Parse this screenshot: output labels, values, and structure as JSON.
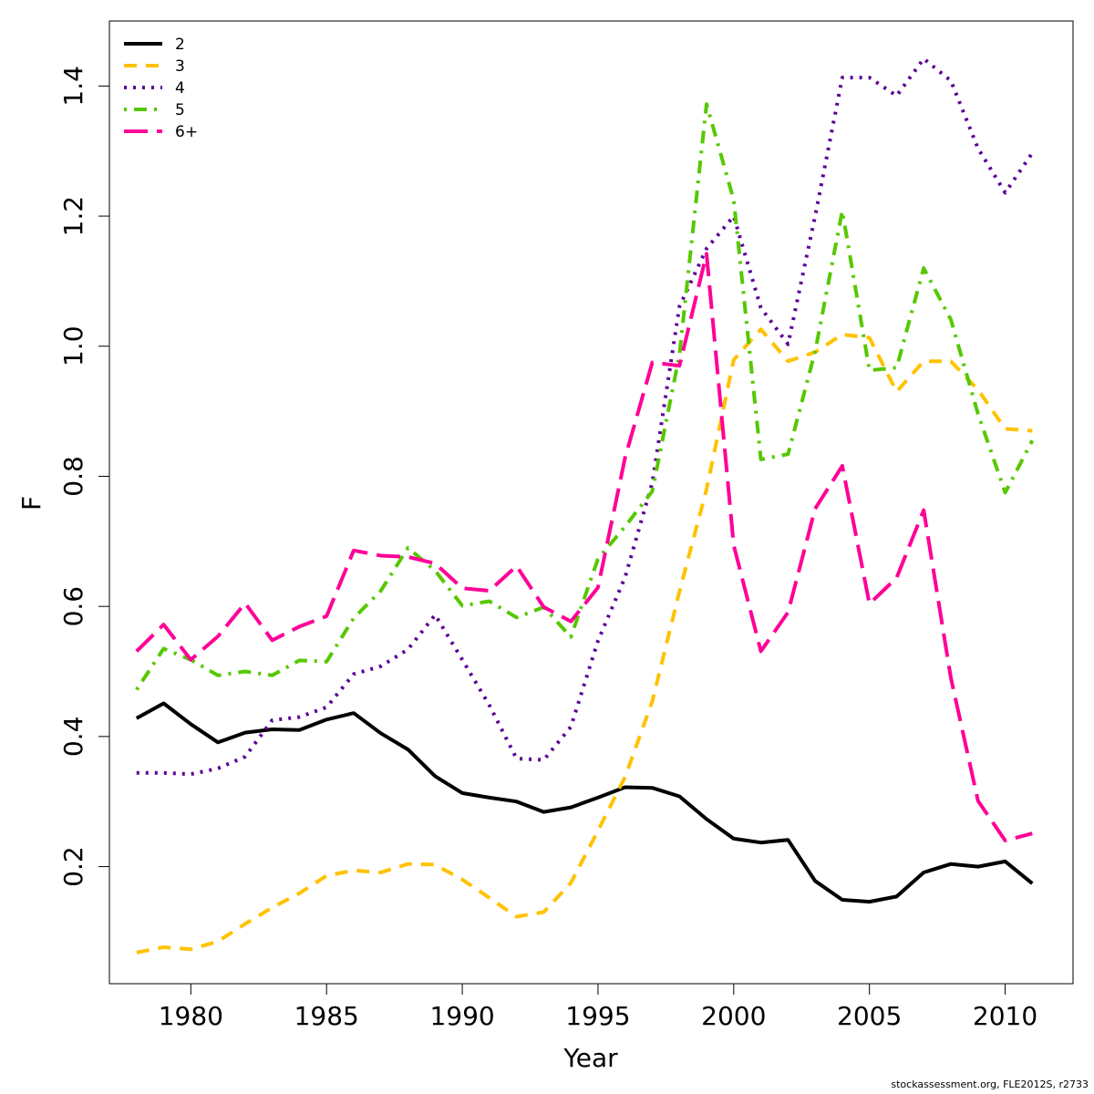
{
  "chart_data": {
    "type": "line",
    "xlabel": "Year",
    "ylabel": "F",
    "xlim": [
      1977,
      2012.5
    ],
    "ylim": [
      0.02,
      1.5
    ],
    "xticks": [
      1980,
      1985,
      1990,
      1995,
      2000,
      2005,
      2010
    ],
    "yticks": [
      0.2,
      0.4,
      0.6,
      0.8,
      1.0,
      1.2,
      1.4
    ],
    "ytick_labels": [
      "0.2",
      "0.4",
      "0.6",
      "0.8",
      "1.0",
      "1.2",
      "1.4"
    ],
    "legend_position": "top-left",
    "x": [
      1978,
      1979,
      1980,
      1981,
      1982,
      1983,
      1984,
      1985,
      1986,
      1987,
      1988,
      1989,
      1990,
      1991,
      1992,
      1993,
      1994,
      1995,
      1996,
      1997,
      1998,
      1999,
      2000,
      2001,
      2002,
      2003,
      2004,
      2005,
      2006,
      2007,
      2008,
      2009,
      2010,
      2011
    ],
    "series": [
      {
        "name": "2",
        "color": "#000000",
        "dash": "solid",
        "values": [
          0.428,
          0.451,
          0.419,
          0.391,
          0.406,
          0.411,
          0.41,
          0.426,
          0.436,
          0.405,
          0.38,
          0.339,
          0.313,
          0.306,
          0.3,
          0.284,
          0.291,
          0.306,
          0.322,
          0.321,
          0.308,
          0.273,
          0.243,
          0.237,
          0.241,
          0.178,
          0.149,
          0.146,
          0.154,
          0.191,
          0.204,
          0.2,
          0.208,
          0.174
        ]
      },
      {
        "name": "3",
        "color": "#ffc200",
        "dash": "dashed",
        "values": [
          0.068,
          0.076,
          0.073,
          0.085,
          0.112,
          0.137,
          0.159,
          0.186,
          0.194,
          0.191,
          0.204,
          0.203,
          0.18,
          0.152,
          0.123,
          0.13,
          0.175,
          0.255,
          0.338,
          0.454,
          0.623,
          0.78,
          0.979,
          1.026,
          0.977,
          0.991,
          1.018,
          1.013,
          0.93,
          0.977,
          0.977,
          0.933,
          0.873,
          0.87
        ]
      },
      {
        "name": "4",
        "color": "#5c0097",
        "dash": "dotted",
        "values": [
          0.344,
          0.344,
          0.342,
          0.351,
          0.369,
          0.425,
          0.43,
          0.445,
          0.496,
          0.508,
          0.534,
          0.587,
          0.518,
          0.448,
          0.366,
          0.364,
          0.415,
          0.547,
          0.645,
          0.79,
          1.061,
          1.15,
          1.2,
          1.059,
          1.003,
          1.2,
          1.413,
          1.413,
          1.385,
          1.442,
          1.408,
          1.304,
          1.236,
          1.297
        ]
      },
      {
        "name": "5",
        "color": "#56c800",
        "dash": "dotdash",
        "values": [
          0.472,
          0.535,
          0.518,
          0.494,
          0.5,
          0.494,
          0.517,
          0.515,
          0.582,
          0.624,
          0.69,
          0.655,
          0.601,
          0.608,
          0.583,
          0.599,
          0.553,
          0.673,
          0.723,
          0.777,
          0.987,
          1.372,
          1.225,
          0.826,
          0.834,
          0.992,
          1.208,
          0.963,
          0.967,
          1.12,
          1.041,
          0.896,
          0.775,
          0.855
        ]
      },
      {
        "name": "6+",
        "color": "#ff0097",
        "dash": "longdash",
        "values": [
          0.531,
          0.572,
          0.518,
          0.554,
          0.605,
          0.548,
          0.569,
          0.585,
          0.686,
          0.678,
          0.676,
          0.666,
          0.628,
          0.624,
          0.662,
          0.599,
          0.577,
          0.629,
          0.829,
          0.975,
          0.97,
          1.142,
          0.694,
          0.531,
          0.591,
          0.75,
          0.816,
          0.604,
          0.644,
          0.748,
          0.49,
          0.301,
          0.24,
          0.251
        ]
      }
    ]
  },
  "footer": {
    "credit": "stockassessment.org, FLE2012S, r2733"
  }
}
